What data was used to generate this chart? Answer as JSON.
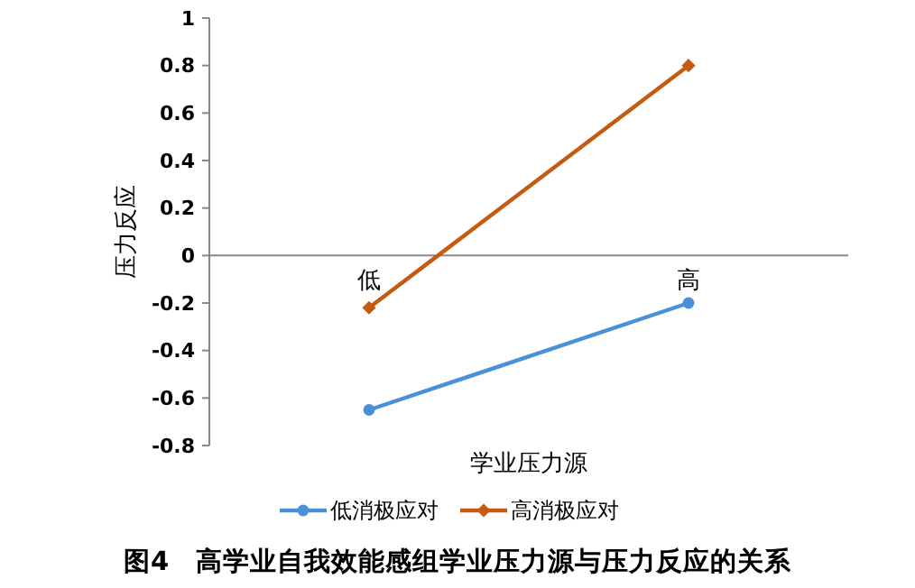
{
  "chart_data": {
    "type": "line",
    "title": "图4　高学业自我效能感组学业压力源与压力反应的关系",
    "xlabel": "学业压力源",
    "ylabel": "压力反应",
    "categories": [
      "低",
      "高"
    ],
    "series": [
      {
        "name": "低消极应对",
        "color": "#4a90d9",
        "values": [
          -0.65,
          -0.2
        ],
        "marker": "circle"
      },
      {
        "name": "高消极应对",
        "color": "#c55a11",
        "values": [
          -0.22,
          0.8
        ],
        "marker": "diamond"
      }
    ],
    "ylim": [
      -0.8,
      1
    ],
    "yticks": [
      -0.8,
      -0.6,
      -0.4,
      -0.2,
      0,
      0.2,
      0.4,
      0.6,
      0.8,
      1
    ],
    "grid": false,
    "legend": "bottom"
  }
}
